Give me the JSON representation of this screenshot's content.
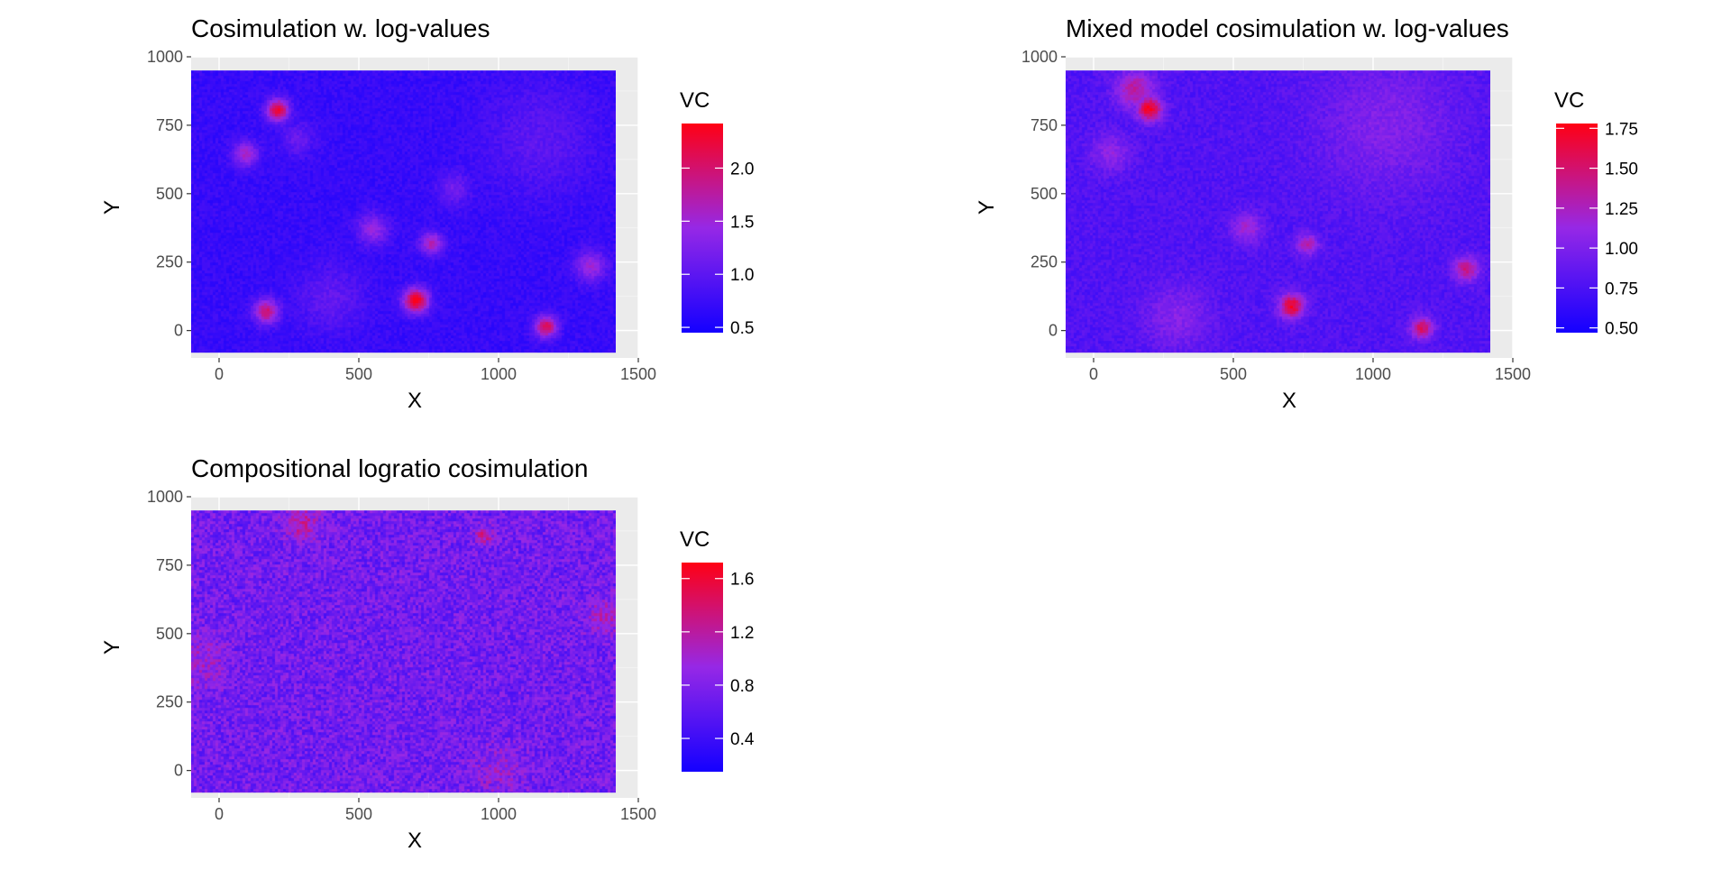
{
  "chart_data": [
    {
      "type": "heatmap",
      "title": "Cosimulation w. log-values",
      "xlabel": "X",
      "ylabel": "Y",
      "xlim": [
        -100,
        1500
      ],
      "ylim": [
        -100,
        1000
      ],
      "xticks": [
        0,
        500,
        1000,
        1500
      ],
      "yticks": [
        0,
        250,
        500,
        750,
        1000
      ],
      "grid": true,
      "data_extent": {
        "x": [
          -100,
          1420
        ],
        "y": [
          -80,
          950
        ]
      },
      "legend": {
        "title": "VC",
        "position": "right",
        "range": [
          0.45,
          2.42
        ],
        "ticks": [
          0.5,
          1.0,
          1.5,
          2.0
        ],
        "tick_labels": [
          "0.5",
          "1.0",
          "1.5",
          "2.0"
        ]
      },
      "base_value": 0.72,
      "noise": 0.06,
      "hotspots": [
        {
          "x": 210,
          "y": 805,
          "peak": 2.3,
          "radius": 40
        },
        {
          "x": 95,
          "y": 645,
          "peak": 1.6,
          "radius": 45
        },
        {
          "x": 705,
          "y": 110,
          "peak": 2.4,
          "radius": 45
        },
        {
          "x": 1170,
          "y": 15,
          "peak": 2.1,
          "radius": 40
        },
        {
          "x": 170,
          "y": 70,
          "peak": 1.95,
          "radius": 45
        },
        {
          "x": 760,
          "y": 320,
          "peak": 1.7,
          "radius": 40
        },
        {
          "x": 550,
          "y": 370,
          "peak": 1.45,
          "radius": 55
        },
        {
          "x": 1330,
          "y": 235,
          "peak": 1.5,
          "radius": 55
        },
        {
          "x": 840,
          "y": 520,
          "peak": 1.15,
          "radius": 60
        },
        {
          "x": 280,
          "y": 700,
          "peak": 1.1,
          "radius": 60
        },
        {
          "x": 400,
          "y": 120,
          "peak": 1.05,
          "radius": 120
        },
        {
          "x": 1150,
          "y": 700,
          "peak": 1.0,
          "radius": 200
        }
      ]
    },
    {
      "type": "heatmap",
      "title": "Mixed model cosimulation w. log-values",
      "xlabel": "X",
      "ylabel": "Y",
      "xlim": [
        -100,
        1500
      ],
      "ylim": [
        -100,
        1000
      ],
      "xticks": [
        0,
        500,
        1000,
        1500
      ],
      "yticks": [
        0,
        250,
        500,
        750,
        1000
      ],
      "grid": true,
      "data_extent": {
        "x": [
          -100,
          1420
        ],
        "y": [
          -80,
          950
        ]
      },
      "legend": {
        "title": "VC",
        "position": "right",
        "range": [
          0.47,
          1.78
        ],
        "ticks": [
          0.5,
          0.75,
          1.0,
          1.25,
          1.5,
          1.75
        ],
        "tick_labels": [
          "0.50",
          "0.75",
          "1.00",
          "1.25",
          "1.50",
          "1.75"
        ]
      },
      "base_value": 0.78,
      "noise": 0.07,
      "hotspots": [
        {
          "x": 200,
          "y": 810,
          "peak": 1.75,
          "radius": 45
        },
        {
          "x": 150,
          "y": 880,
          "peak": 1.35,
          "radius": 70
        },
        {
          "x": 710,
          "y": 90,
          "peak": 1.7,
          "radius": 45
        },
        {
          "x": 1175,
          "y": 10,
          "peak": 1.55,
          "radius": 40
        },
        {
          "x": 1335,
          "y": 225,
          "peak": 1.45,
          "radius": 45
        },
        {
          "x": 765,
          "y": 315,
          "peak": 1.3,
          "radius": 40
        },
        {
          "x": 550,
          "y": 375,
          "peak": 1.2,
          "radius": 55
        },
        {
          "x": 60,
          "y": 650,
          "peak": 1.1,
          "radius": 70
        },
        {
          "x": 300,
          "y": 50,
          "peak": 1.05,
          "radius": 120
        },
        {
          "x": 1050,
          "y": 750,
          "peak": 1.02,
          "radius": 250
        }
      ]
    },
    {
      "type": "heatmap",
      "title": "Compositional logratio cosimulation",
      "xlabel": "X",
      "ylabel": "Y",
      "xlim": [
        -100,
        1500
      ],
      "ylim": [
        -100,
        1000
      ],
      "xticks": [
        0,
        500,
        1000,
        1500
      ],
      "yticks": [
        0,
        250,
        500,
        750,
        1000
      ],
      "grid": true,
      "data_extent": {
        "x": [
          -100,
          1420
        ],
        "y": [
          -80,
          950
        ]
      },
      "legend": {
        "title": "VC",
        "position": "right",
        "range": [
          0.15,
          1.72
        ],
        "ticks": [
          0.4,
          0.8,
          1.2,
          1.6
        ],
        "tick_labels": [
          "0.4",
          "0.8",
          "1.2",
          "1.6"
        ]
      },
      "base_value": 0.72,
      "noise": 0.16,
      "hotspots": [
        {
          "x": 300,
          "y": 900,
          "peak": 1.2,
          "radius": 60
        },
        {
          "x": 950,
          "y": 860,
          "peak": 1.3,
          "radius": 30
        },
        {
          "x": 1380,
          "y": 560,
          "peak": 1.1,
          "radius": 60
        },
        {
          "x": -60,
          "y": 400,
          "peak": 1.0,
          "radius": 90
        },
        {
          "x": 1000,
          "y": 0,
          "peak": 0.95,
          "radius": 90
        }
      ]
    }
  ]
}
